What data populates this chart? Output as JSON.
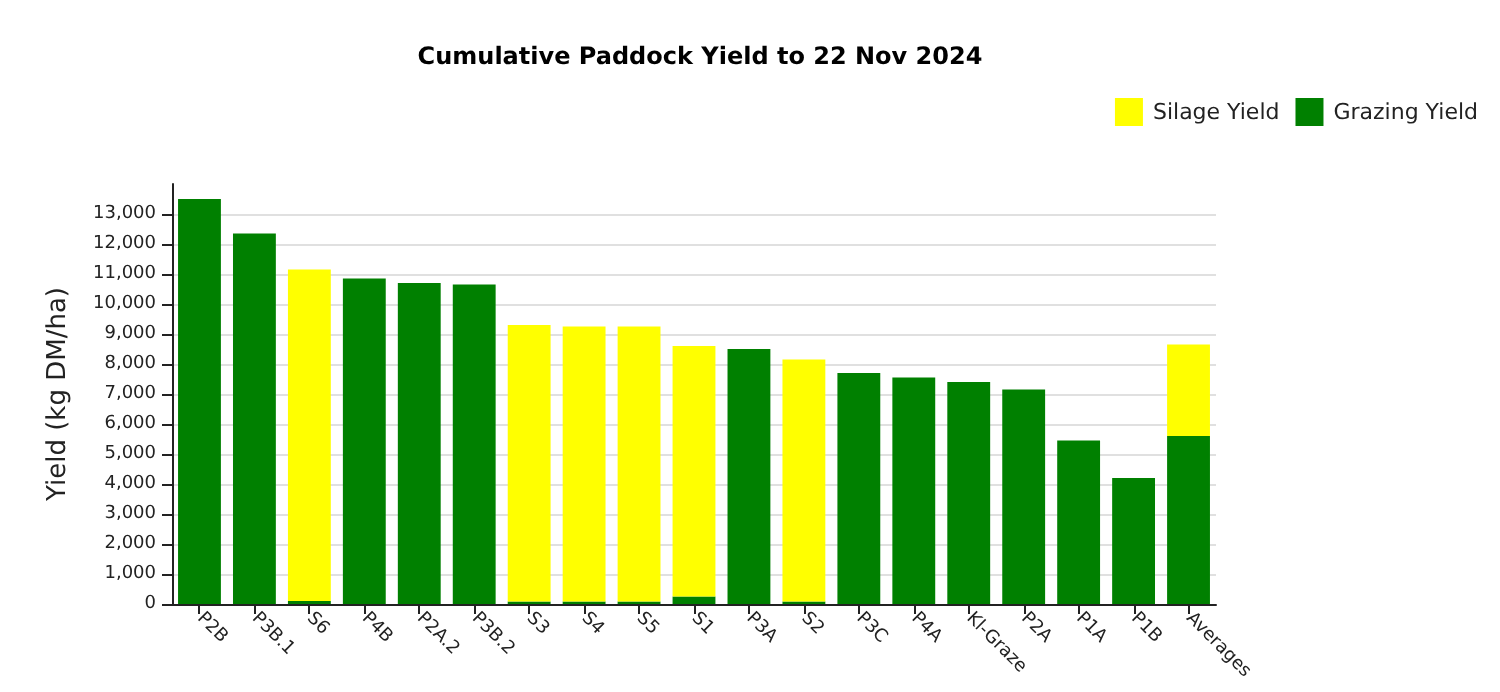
{
  "chart_data": {
    "type": "bar",
    "title": "Cumulative Paddock Yield to 22 Nov 2024",
    "ylabel": "Yield (kg DM/ha)",
    "categories": [
      "P2B",
      "P3B.1",
      "S6",
      "P4B",
      "P2A.2",
      "P3B.2",
      "S3",
      "S4",
      "S5",
      "S1",
      "P3A",
      "S2",
      "P3C",
      "P4A",
      "Kl-Graze",
      "P2A",
      "P1A",
      "P1B",
      "Averages"
    ],
    "stacked": true,
    "series": [
      {
        "name": "Grazing Yield",
        "color": "#008000",
        "values": [
          13500,
          12350,
          100,
          10850,
          10700,
          10650,
          80,
          80,
          80,
          250,
          8500,
          80,
          7700,
          7550,
          7400,
          7150,
          5450,
          4200,
          5600
        ]
      },
      {
        "name": "Silage Yield",
        "color": "#ffff00",
        "values": [
          0,
          0,
          11050,
          0,
          0,
          0,
          9220,
          9170,
          9170,
          8350,
          0,
          8070,
          0,
          0,
          0,
          0,
          0,
          0,
          3050
        ]
      }
    ],
    "ylim": [
      0,
      14000
    ],
    "yticks": [
      {
        "value": 0,
        "label": "0"
      },
      {
        "value": 1000,
        "label": "1,000"
      },
      {
        "value": 2000,
        "label": "2,000"
      },
      {
        "value": 3000,
        "label": "3,000"
      },
      {
        "value": 4000,
        "label": "4,000"
      },
      {
        "value": 5000,
        "label": "5,000"
      },
      {
        "value": 6000,
        "label": "6,000"
      },
      {
        "value": 7000,
        "label": "7,000"
      },
      {
        "value": 8000,
        "label": "8,000"
      },
      {
        "value": 9000,
        "label": "9,000"
      },
      {
        "value": 10000,
        "label": "10,000"
      },
      {
        "value": 11000,
        "label": "11,000"
      },
      {
        "value": 12000,
        "label": "12,000"
      },
      {
        "value": 13000,
        "label": "13,000"
      }
    ],
    "grid": "y",
    "legend": "top right"
  }
}
